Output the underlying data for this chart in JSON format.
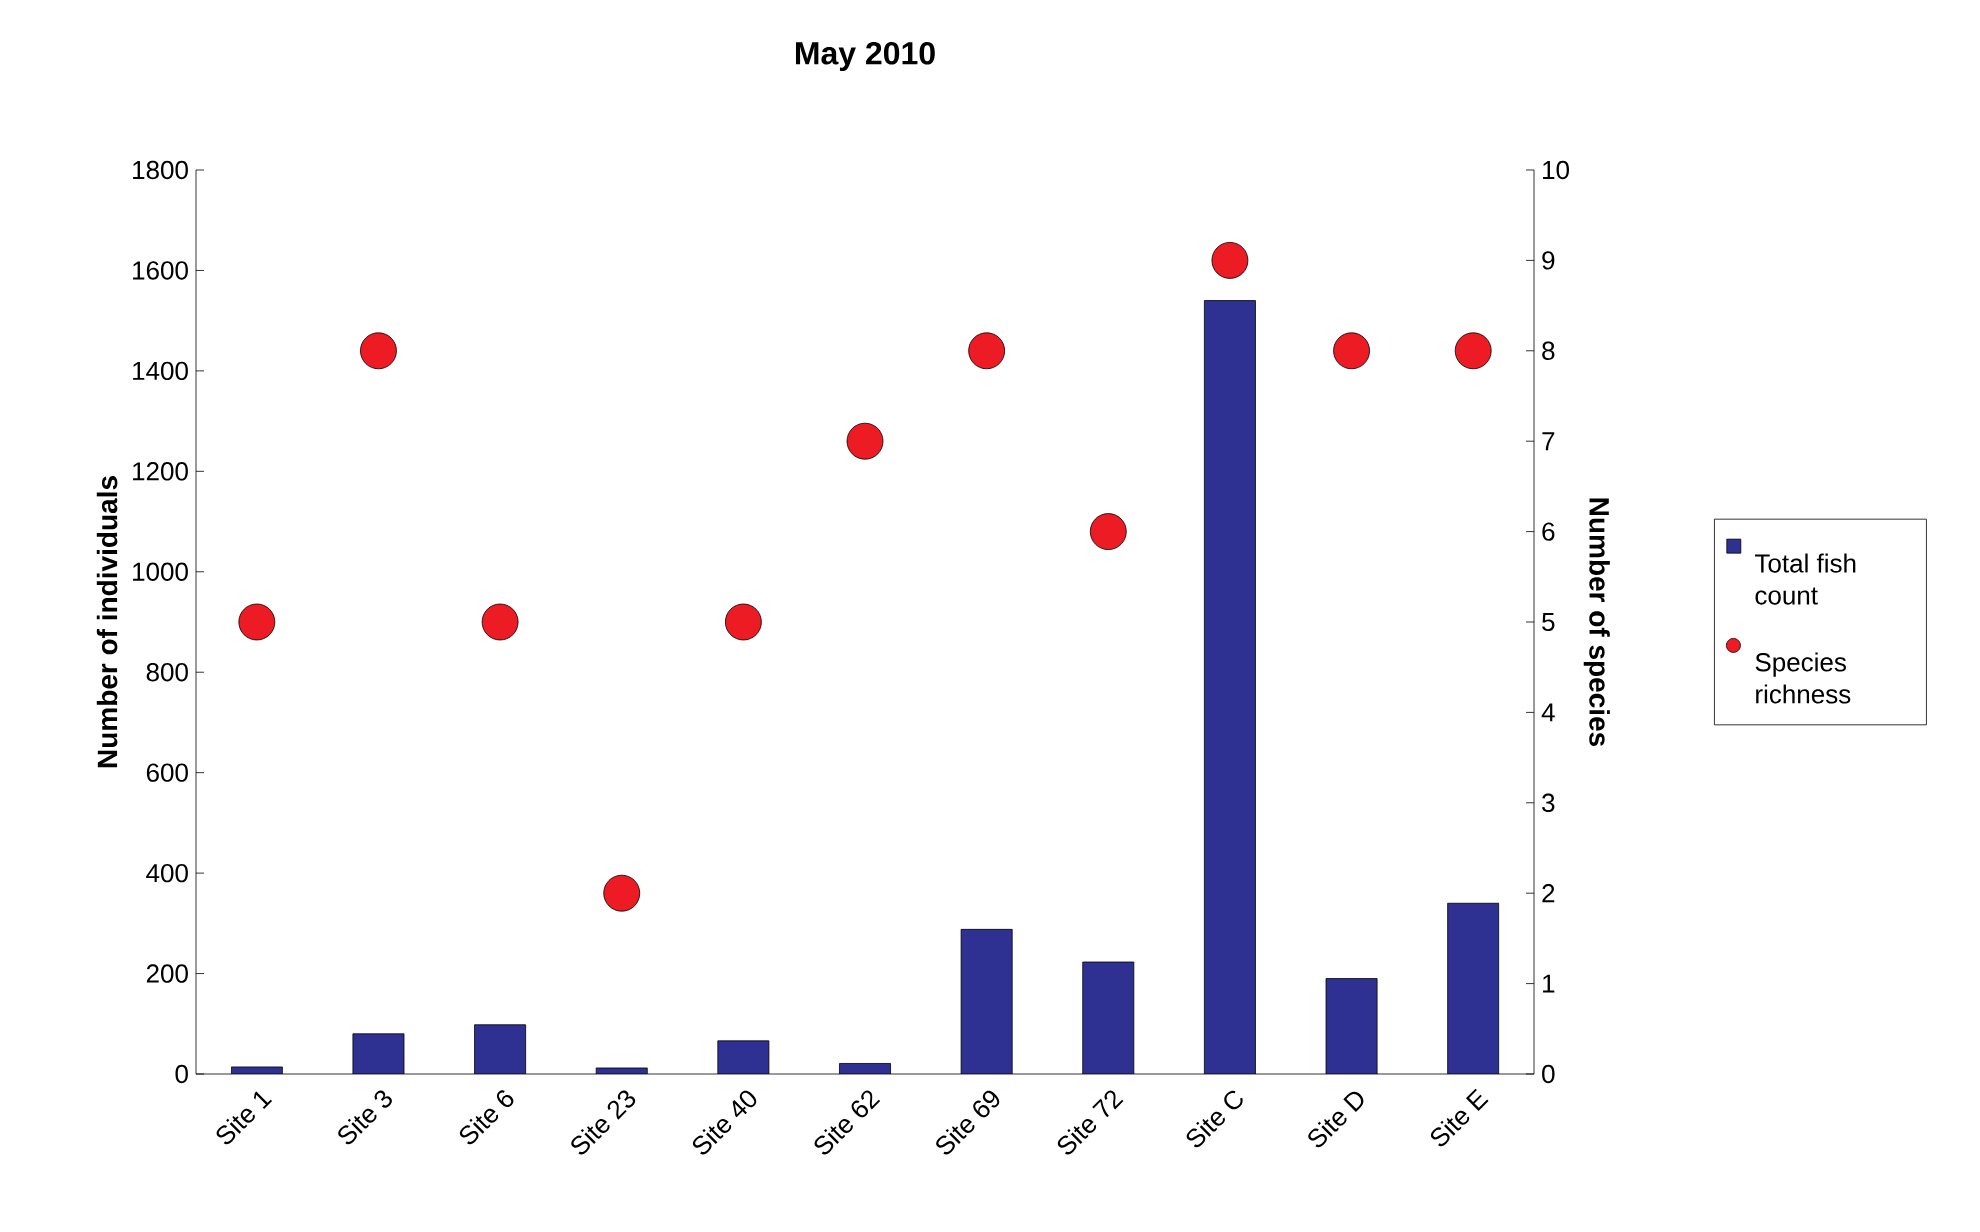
{
  "chart_data": {
    "type": "bar",
    "title": "May 2010",
    "categories": [
      "Site 1",
      "Site 3",
      "Site 6",
      "Site 23",
      "Site 40",
      "Site 62",
      "Site 69",
      "Site 72",
      "Site C",
      "Site D",
      "Site E"
    ],
    "series": [
      {
        "name": "Total fish count",
        "color": "#2e3192",
        "values": [
          14,
          80,
          98,
          12,
          66,
          21,
          288,
          223,
          1540,
          190,
          340
        ]
      },
      {
        "name": "Species richness",
        "type": "scatter",
        "axis": "y2",
        "color": "#ed1c24",
        "marker": "circle",
        "values": [
          5,
          8,
          5,
          2,
          5,
          7,
          8,
          6,
          9,
          8,
          8
        ]
      }
    ],
    "ylabel": "Number of individuals",
    "y2label": "Number of species",
    "ylim": [
      0,
      1800
    ],
    "yticks": [
      0,
      200,
      400,
      600,
      800,
      1000,
      1200,
      1400,
      1600,
      1800
    ],
    "y2lim": [
      0,
      10
    ],
    "y2ticks": [
      0,
      1,
      2,
      3,
      4,
      5,
      6,
      7,
      8,
      9,
      10
    ],
    "grid": false,
    "legend": "right"
  }
}
